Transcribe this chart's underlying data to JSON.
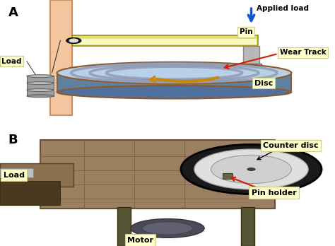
{
  "fig_width": 4.74,
  "fig_height": 3.48,
  "dpi": 100,
  "bg_color": "#ffffff",
  "panel_A_label": "A",
  "panel_B_label": "B",
  "labels": {
    "applied_load": "Applied load",
    "pin": "Pin",
    "wear_track": "Wear Track",
    "disc": "Disc",
    "load": "Load",
    "counter_disc": "Counter disc",
    "pin_holder": "Pin holder",
    "motor": "Motor"
  },
  "label_box_color": "#ffffcc",
  "label_box_edge": "#cccc88",
  "arrow_color_blue": "#1155cc",
  "arrow_color_red": "#cc2200",
  "arrow_color_gold": "#cc8800",
  "wall_color": "#f4c6a0",
  "wall_edge": "#c89060",
  "beam_color_outer": "#e0e080",
  "beam_color_inner": "#f8f8c0",
  "disc_top_color": "#b8d0e8",
  "disc_side_color": "#6080a0",
  "disc_edge_color": "#8b5a2b",
  "disc_track_color": "#8890a8",
  "pin_color": "#b0b0b0",
  "photo_bg": "#ffffff",
  "machine_color": "#9a8060",
  "machine_edge": "#6a5030",
  "belt_color": "#222222",
  "disc_photo_color": "#e8e8e8"
}
